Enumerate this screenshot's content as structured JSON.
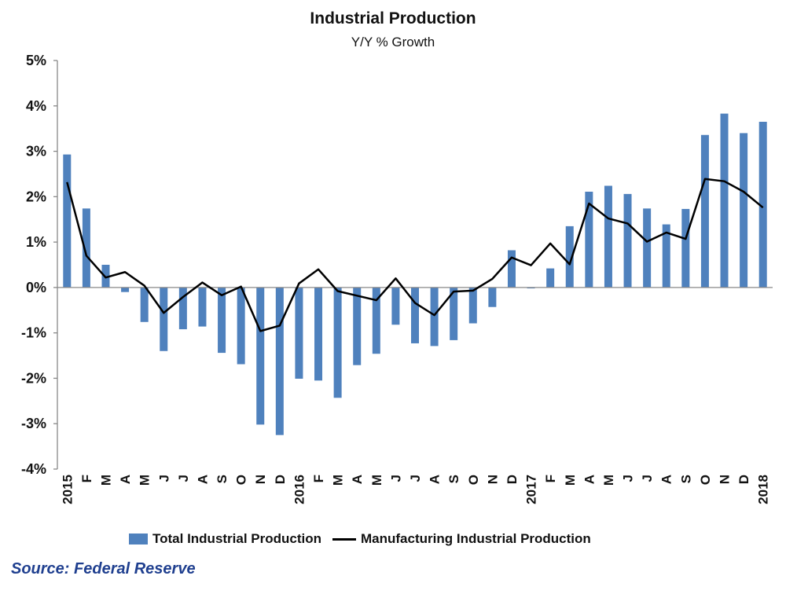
{
  "colors": {
    "bar": "#4f81bd",
    "line": "#000000",
    "axis": "#888888",
    "source": "#1f3f8f"
  },
  "chart_data": {
    "type": "bar",
    "title": "Industrial Production",
    "subtitle": "Y/Y % Growth",
    "ylim": [
      -4,
      5
    ],
    "y_ticks": [
      5,
      4,
      3,
      2,
      1,
      0,
      -1,
      -2,
      -3,
      -4
    ],
    "y_tick_labels": [
      "5%",
      "4%",
      "3%",
      "2%",
      "1%",
      "0%",
      "-1%",
      "-2%",
      "-3%",
      "-4%"
    ],
    "categories": [
      "2015",
      "F",
      "M",
      "A",
      "M",
      "J",
      "J",
      "A",
      "S",
      "O",
      "N",
      "D",
      "2016",
      "F",
      "M",
      "A",
      "M",
      "J",
      "J",
      "A",
      "S",
      "O",
      "N",
      "D",
      "2017",
      "F",
      "M",
      "A",
      "M",
      "J",
      "J",
      "A",
      "S",
      "O",
      "N",
      "D",
      "2018"
    ],
    "series": [
      {
        "name": "Total Industrial Production",
        "type": "bar",
        "values": [
          2.93,
          1.74,
          0.5,
          -0.1,
          -0.76,
          -1.4,
          -0.92,
          -0.86,
          -1.44,
          -1.69,
          -3.02,
          -3.25,
          -2.01,
          -2.05,
          -2.43,
          -1.71,
          -1.46,
          -0.82,
          -1.23,
          -1.29,
          -1.16,
          -0.79,
          -0.43,
          0.82,
          -0.02,
          0.42,
          1.35,
          2.11,
          2.24,
          2.06,
          1.74,
          1.39,
          1.73,
          3.36,
          3.83,
          3.4,
          3.65
        ]
      },
      {
        "name": "Manufacturing Industrial Production",
        "type": "line",
        "values": [
          2.32,
          0.7,
          0.22,
          0.34,
          0.04,
          -0.56,
          -0.21,
          0.11,
          -0.17,
          0.02,
          -0.96,
          -0.84,
          0.09,
          0.4,
          -0.08,
          -0.18,
          -0.28,
          0.2,
          -0.34,
          -0.61,
          -0.09,
          -0.07,
          0.19,
          0.66,
          0.49,
          0.97,
          0.51,
          1.85,
          1.52,
          1.41,
          1.01,
          1.21,
          1.07,
          2.39,
          2.34,
          2.11,
          1.76
        ]
      }
    ],
    "grid": false,
    "legend_position": "bottom"
  },
  "source": "Source: Federal Reserve"
}
